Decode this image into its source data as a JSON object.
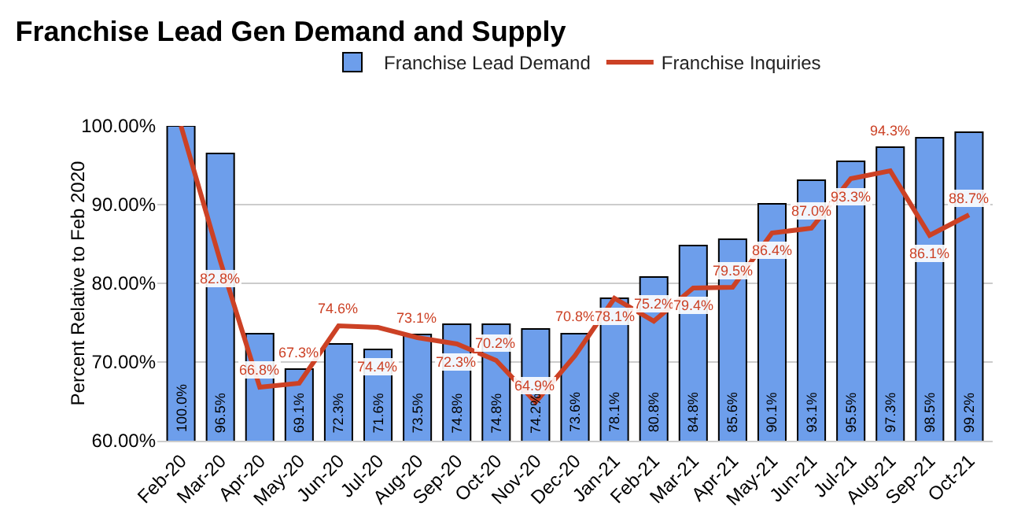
{
  "chart_data": {
    "type": "bar",
    "title": "Franchise Lead Gen Demand and Supply",
    "ylabel": "Percent Relative to Feb 2020",
    "categories": [
      "Feb-20",
      "Mar-20",
      "Apr-20",
      "May-20",
      "Jun-20",
      "Jul-20",
      "Aug-20",
      "Sep-20",
      "Oct-20",
      "Nov-20",
      "Dec-20",
      "Jan-21",
      "Feb-21",
      "Mar-21",
      "Apr-21",
      "May-21",
      "Jun-21",
      "Jul-21",
      "Aug-21",
      "Sep-21",
      "Oct-21"
    ],
    "series": [
      {
        "name": "Franchise Lead Demand",
        "color": "#6d9eeb",
        "values": [
          100.0,
          96.5,
          73.6,
          69.1,
          72.3,
          71.6,
          73.5,
          74.8,
          74.8,
          74.2,
          73.6,
          78.1,
          80.8,
          84.8,
          85.6,
          90.1,
          93.1,
          95.5,
          97.3,
          98.5,
          99.2
        ],
        "value_labels": [
          "100.0%",
          "96.5%",
          null,
          "69.1%",
          "72.3%",
          "71.6%",
          "73.5%",
          "74.8%",
          "74.8%",
          "74.2%",
          "73.6%",
          "78.1%",
          "80.8%",
          "84.8%",
          "85.6%",
          "90.1%",
          "93.1%",
          "95.5%",
          "97.3%",
          "98.5%",
          "99.2%"
        ]
      },
      {
        "name": "Franchise Inquiries",
        "type": "line",
        "color": "#cc4125",
        "values": [
          100.0,
          82.8,
          66.8,
          67.3,
          74.6,
          74.4,
          73.1,
          72.3,
          70.2,
          64.9,
          70.8,
          78.1,
          75.2,
          79.4,
          79.5,
          86.4,
          87.0,
          93.3,
          94.3,
          86.1,
          88.7
        ],
        "value_labels": [
          null,
          "82.8%",
          "66.8%",
          "67.3%",
          "74.6%",
          "74.4%",
          "73.1%",
          "72.3%",
          "70.2%",
          "64.9%",
          "70.8%",
          "78.1%",
          "75.2%",
          "79.4%",
          "79.5%",
          "86.4%",
          "87.0%",
          "93.3%",
          "94.3%",
          "86.1%",
          "88.7%"
        ]
      }
    ],
    "ylim": [
      60,
      100
    ],
    "yticks": [
      {
        "value": 60,
        "label": "60.00%"
      },
      {
        "value": 70,
        "label": "70.00%"
      },
      {
        "value": 80,
        "label": "80.00%"
      },
      {
        "value": 90,
        "label": "90.00%"
      },
      {
        "value": 100,
        "label": "100.00%"
      }
    ],
    "grid": "y",
    "legend": "top",
    "marker": "none",
    "line_style": "solid"
  }
}
